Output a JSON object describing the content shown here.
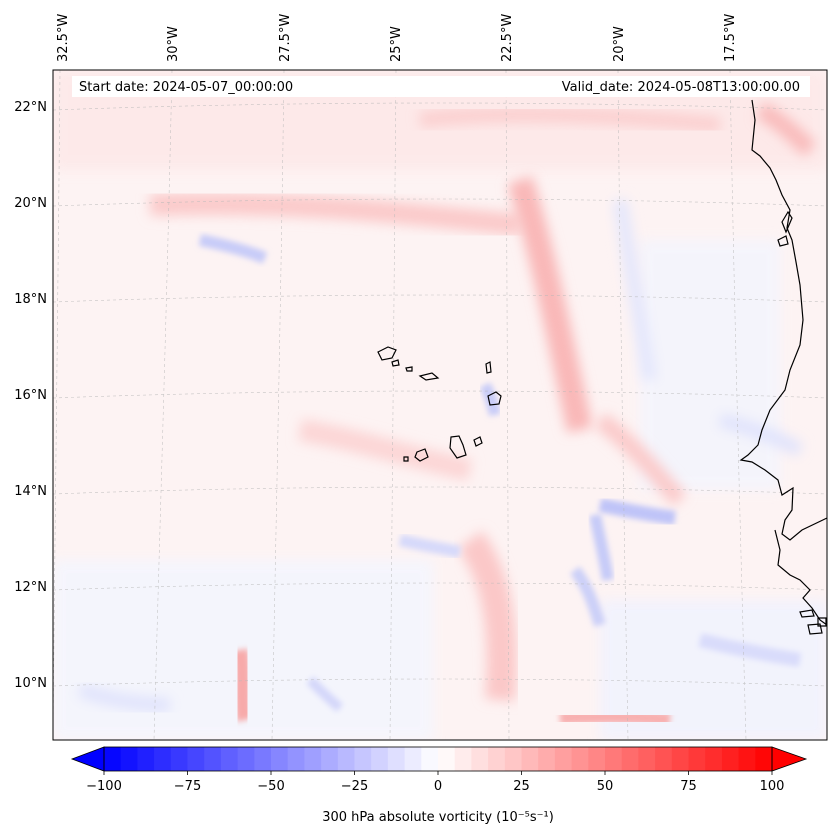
{
  "header": {
    "start_date": "Start date: 2024-05-07_00:00:00",
    "valid_date": "Valid_date: 2024-05-08T13:00:00.00"
  },
  "map": {
    "lon_ticks": [
      "32.5°W",
      "30°W",
      "27.5°W",
      "25°W",
      "22.5°W",
      "20°W",
      "17.5°W"
    ],
    "lat_ticks": [
      "22°N",
      "20°N",
      "18°N",
      "16°N",
      "14°N",
      "12°N",
      "10°N"
    ],
    "gridlines": true,
    "gridline_style": "dashed"
  },
  "colorbar": {
    "label": "300 hPa absolute vorticity (10⁻⁵s⁻¹)",
    "ticks": [
      "−100",
      "−75",
      "−50",
      "−25",
      "0",
      "25",
      "50",
      "75",
      "100"
    ],
    "range": [
      -100,
      100
    ],
    "levels": 41,
    "colormap": "bwr",
    "low_color": "#0000ff",
    "mid_color": "#ffffff",
    "high_color": "#ff0000",
    "extend": "both"
  },
  "coast_color": "#000000"
}
